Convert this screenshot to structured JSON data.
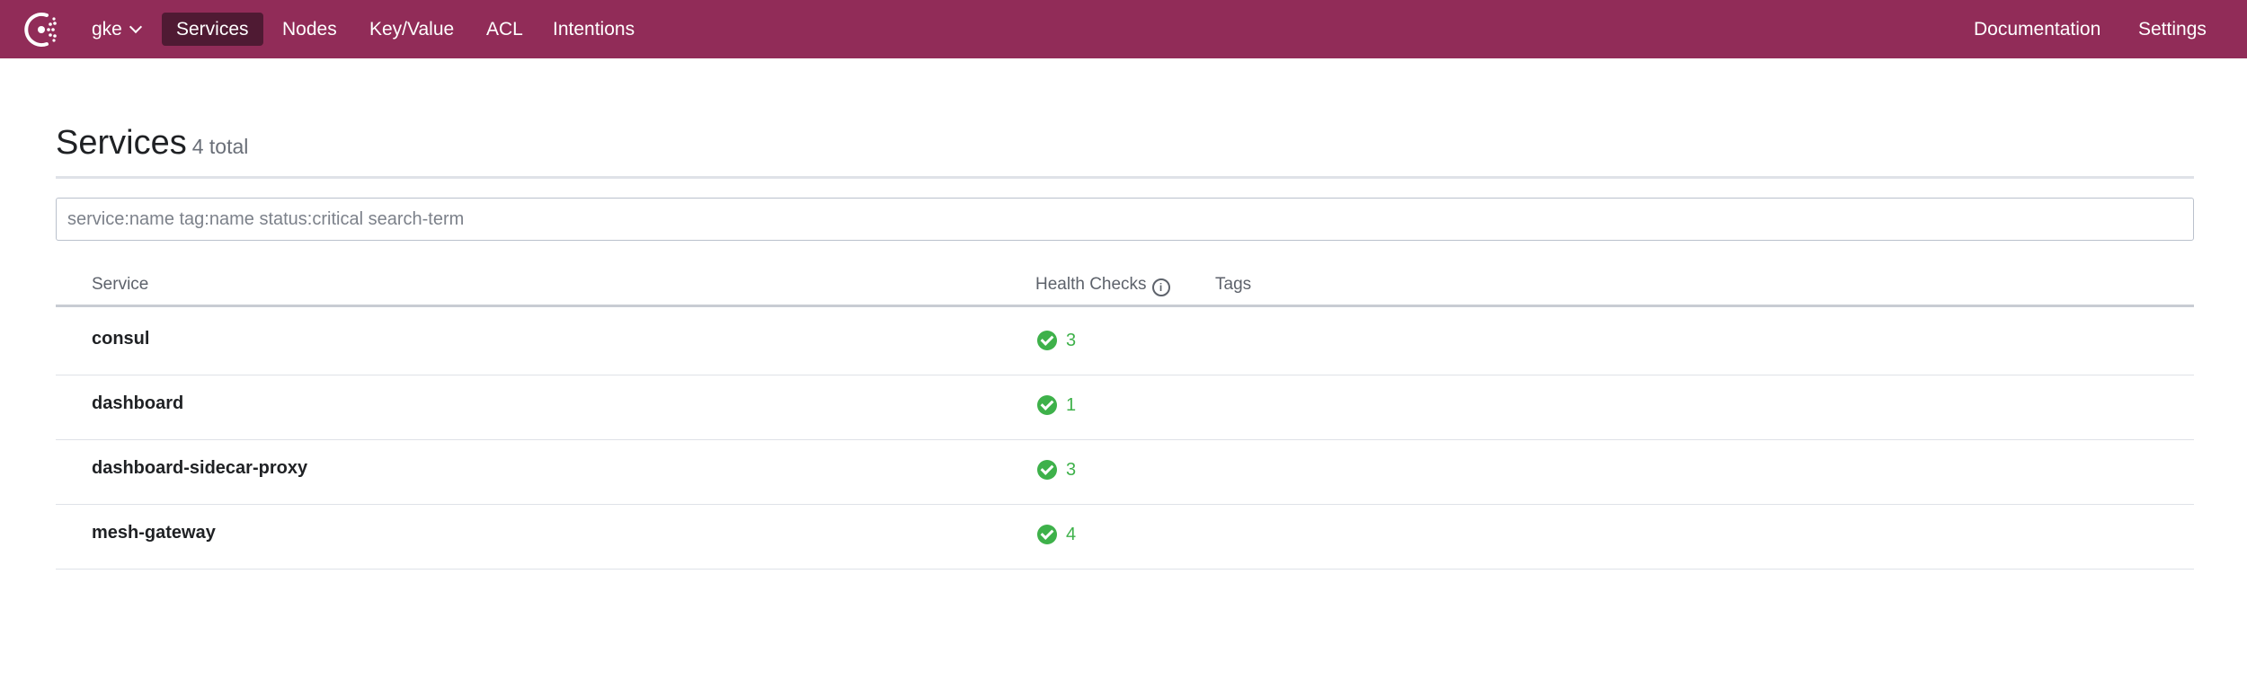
{
  "nav": {
    "datacenter": "gke",
    "items": [
      {
        "label": "Services",
        "active": true
      },
      {
        "label": "Nodes"
      },
      {
        "label": "Key/Value"
      },
      {
        "label": "ACL"
      },
      {
        "label": "Intentions"
      }
    ],
    "right": [
      {
        "label": "Documentation"
      },
      {
        "label": "Settings"
      }
    ]
  },
  "page": {
    "title": "Services",
    "count": "4 total"
  },
  "search": {
    "placeholder": "service:name tag:name status:critical search-term",
    "value": ""
  },
  "table": {
    "columns": [
      "Service",
      "Health Checks",
      "Tags"
    ],
    "info_icon": "i",
    "rows": [
      {
        "name": "consul",
        "checks": "3",
        "status": "passing",
        "tags": ""
      },
      {
        "name": "dashboard",
        "checks": "1",
        "status": "passing",
        "tags": ""
      },
      {
        "name": "dashboard-sidecar-proxy",
        "checks": "3",
        "status": "passing",
        "tags": ""
      },
      {
        "name": "mesh-gateway",
        "checks": "4",
        "status": "passing",
        "tags": ""
      }
    ]
  },
  "colors": {
    "brand": "#912c58",
    "active": "#4f1a33",
    "passing": "#3eb14a"
  }
}
